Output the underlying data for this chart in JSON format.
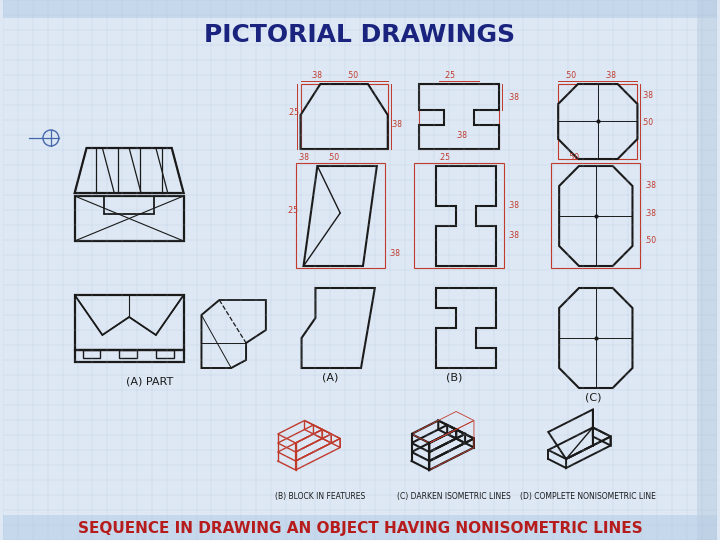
{
  "title": "PICTORIAL DRAWINGS",
  "title_color": "#1a237e",
  "title_fontsize": 18,
  "subtitle": "SEQUENCE IN DRAWING AN OBJECT HAVING NONISOMETRIC LINES",
  "subtitle_color": "#b71c1c",
  "subtitle_fontsize": 11,
  "background_color": "#dde8f4",
  "grid_color": "#aabbd4",
  "part_label": "(A) PART",
  "label_a": "(A)",
  "label_b": "(B)",
  "label_c": "(C)",
  "label_b_block": "(B) BLOCK IN FEATURES",
  "label_c_darken": "(C) DARKEN ISOMETRIC LINES",
  "label_d_complete": "(D) COMPLETE NONISOMETRIC LINE",
  "dim_color": "#c0392b",
  "line_color": "#1a1a1a",
  "top_bar_color": "#b8ccdf",
  "white_bg": "#f5f5f5"
}
